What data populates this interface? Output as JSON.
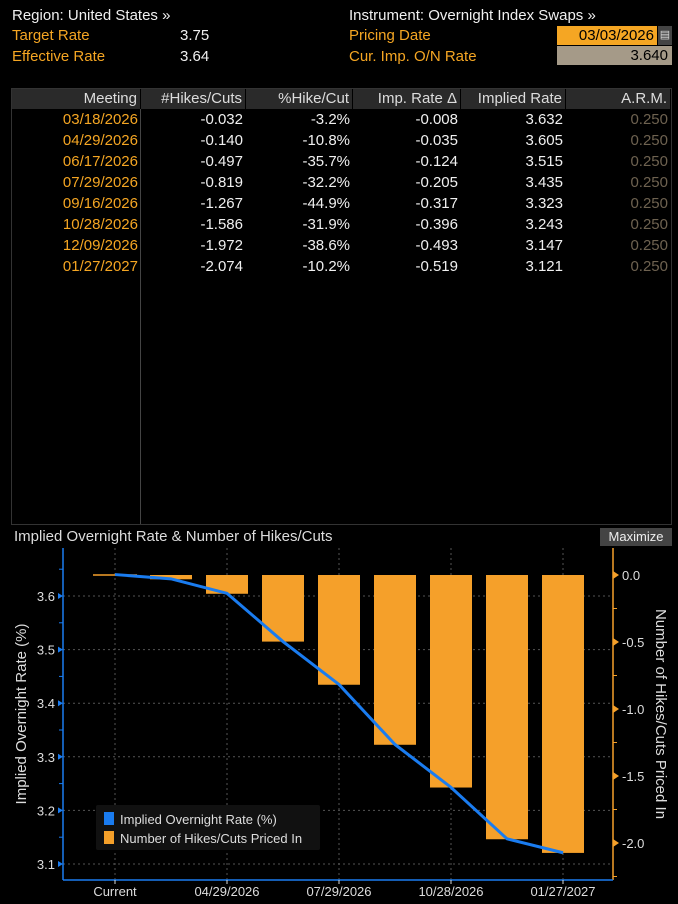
{
  "header": {
    "region": "Region: United States »",
    "instrument": "Instrument: Overnight Index Swaps »",
    "target_rate_label": "Target Rate",
    "target_rate": "3.75",
    "effective_rate_label": "Effective Rate",
    "effective_rate": "3.64",
    "pricing_date_label": "Pricing Date",
    "pricing_date": "03/03/2026",
    "cur_rate_label": "Cur. Imp. O/N Rate",
    "cur_rate": "3.640"
  },
  "table": {
    "columns": [
      "Meeting",
      "#Hikes/Cuts",
      "%Hike/Cut",
      "Imp. Rate Δ",
      "Implied Rate",
      "A.R.M."
    ],
    "rows": [
      [
        "03/18/2026",
        "-0.032",
        "-3.2%",
        "-0.008",
        "3.632",
        "0.250"
      ],
      [
        "04/29/2026",
        "-0.140",
        "-10.8%",
        "-0.035",
        "3.605",
        "0.250"
      ],
      [
        "06/17/2026",
        "-0.497",
        "-35.7%",
        "-0.124",
        "3.515",
        "0.250"
      ],
      [
        "07/29/2026",
        "-0.819",
        "-32.2%",
        "-0.205",
        "3.435",
        "0.250"
      ],
      [
        "09/16/2026",
        "-1.267",
        "-44.9%",
        "-0.317",
        "3.323",
        "0.250"
      ],
      [
        "10/28/2026",
        "-1.586",
        "-31.9%",
        "-0.396",
        "3.243",
        "0.250"
      ],
      [
        "12/09/2026",
        "-1.972",
        "-38.6%",
        "-0.493",
        "3.147",
        "0.250"
      ],
      [
        "01/27/2027",
        "-2.074",
        "-10.2%",
        "-0.519",
        "3.121",
        "0.250"
      ]
    ]
  },
  "chart_title": "Implied Overnight Rate & Number of Hikes/Cuts",
  "maximize_label": "Maximize",
  "chart_data": {
    "type": "bar+line",
    "title": "Implied Overnight Rate & Number of Hikes/Cuts",
    "categories": [
      "Current",
      "03/18/2026",
      "04/29/2026",
      "06/17/2026",
      "07/29/2026",
      "09/16/2026",
      "10/28/2026",
      "12/09/2026",
      "01/27/2027"
    ],
    "x_tick_labels": [
      "Current",
      "04/29/2026",
      "07/29/2026",
      "10/28/2026",
      "01/27/2027"
    ],
    "series": [
      {
        "name": "Implied Overnight Rate (%)",
        "type": "line",
        "axis": "left",
        "color": "#1a7cf0",
        "values": [
          3.64,
          3.632,
          3.605,
          3.515,
          3.435,
          3.323,
          3.243,
          3.147,
          3.121
        ]
      },
      {
        "name": "Number of Hikes/Cuts Priced In",
        "type": "bar",
        "axis": "right",
        "color": "#f5a02a",
        "values": [
          0,
          -0.032,
          -0.14,
          -0.497,
          -0.819,
          -1.267,
          -1.586,
          -1.972,
          -2.074
        ]
      }
    ],
    "ylabel": "Implied Overnight Rate (%)",
    "y2label": "Number of Hikes/Cuts Priced In",
    "yticks": [
      "3.6",
      "3.5",
      "3.4",
      "3.3",
      "3.2",
      "3.1"
    ],
    "y2ticks": [
      "0.0",
      "-0.5",
      "-1.0",
      "-1.5",
      "-2.0"
    ],
    "ylim": [
      3.07,
      3.69
    ],
    "y2lim": [
      -2.28,
      0.2
    ],
    "legend": "bottom-left",
    "grid": true
  }
}
